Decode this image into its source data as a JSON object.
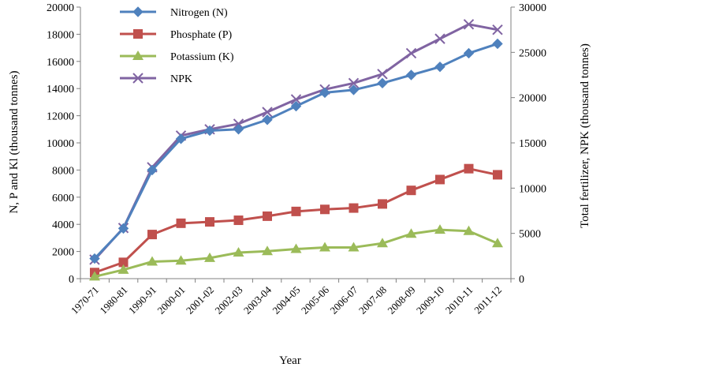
{
  "chart_data": {
    "type": "line",
    "title": "",
    "xlabel": "Year",
    "ylabel": "N, P and Kl (thousand tonnes)",
    "y2label": "Total fertilizer, NPK (thousand tonnes)",
    "ylim": [
      0,
      20000
    ],
    "y2lim": [
      0,
      30000
    ],
    "yticks": [
      "0",
      "2000",
      "4000",
      "6000",
      "8000",
      "10000",
      "12000",
      "14000",
      "16000",
      "18000",
      "20000"
    ],
    "y2ticks": [
      "0",
      "5000",
      "10000",
      "15000",
      "20000",
      "25000",
      "30000"
    ],
    "grid": false,
    "legend_position": "top-left",
    "categories": [
      "1970-71",
      "1980-81",
      "1990-91",
      "2000-01",
      "2001-02",
      "2002-03",
      "2003-04",
      "2004-05",
      "2005-06",
      "2006-07",
      "2007-08",
      "2008-09",
      "2009-10",
      "2010-11",
      "2011-12"
    ],
    "series": [
      {
        "name": "Nitrogen (N)",
        "axis": "left",
        "color": "#4f81bd",
        "marker": "diamond",
        "values": [
          1480,
          3700,
          8000,
          10300,
          10900,
          11000,
          11700,
          12700,
          13700,
          13900,
          14400,
          15000,
          15600,
          16600,
          17300
        ]
      },
      {
        "name": "Phosphate (P)",
        "axis": "left",
        "color": "#c0504d",
        "marker": "square",
        "values": [
          450,
          1200,
          3250,
          4080,
          4180,
          4300,
          4600,
          4950,
          5100,
          5200,
          5500,
          6500,
          7300,
          8100,
          7650
        ]
      },
      {
        "name": "Potassium (K)",
        "axis": "left",
        "color": "#9bbb59",
        "marker": "triangle",
        "values": [
          150,
          650,
          1250,
          1320,
          1520,
          1920,
          2020,
          2180,
          2300,
          2300,
          2600,
          3300,
          3600,
          3500,
          2600
        ]
      },
      {
        "name": "NPK",
        "axis": "right",
        "color": "#8064a2",
        "marker": "x",
        "values": [
          2100,
          5600,
          12300,
          15800,
          16500,
          17100,
          18400,
          19800,
          20900,
          21600,
          22600,
          24900,
          26500,
          28100,
          27500
        ]
      }
    ]
  }
}
